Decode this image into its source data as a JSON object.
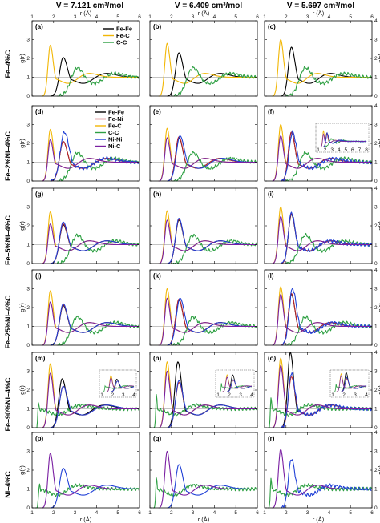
{
  "figure": {
    "top_axis_label": "r (Å)",
    "bottom_axis_label": "r (Å)",
    "y_axis_label": "g(r)",
    "x_ticks": [
      "1",
      "2",
      "3",
      "4",
      "5",
      "6"
    ],
    "y_ticks_left": [
      "0",
      "1",
      "2",
      "3"
    ],
    "y_ticks_right": [
      "0",
      "1",
      "2",
      "3",
      "4"
    ],
    "inset_x_ticks": [
      "1",
      "2",
      "3",
      "4",
      "5",
      "6",
      "7",
      "8"
    ],
    "inset_x_ticks_small": [
      "1",
      "2",
      "3",
      "4"
    ]
  },
  "columns": [
    {
      "label": "V = 7.121 cm³/mol"
    },
    {
      "label": "V = 6.409 cm³/mol"
    },
    {
      "label": "V = 5.697 cm³/mol"
    }
  ],
  "rows": [
    {
      "label": "Fe–4%C"
    },
    {
      "label": "Fe–2%Ni–4%C"
    },
    {
      "label": "Fe–5%Ni–4%C"
    },
    {
      "label": "Fe–25%Ni–4%C"
    },
    {
      "label": "Fe–90%Ni–4%C"
    },
    {
      "label": "Ni–4%C"
    }
  ],
  "panel_labels": [
    "(a)",
    "(b)",
    "(c)",
    "(d)",
    "(e)",
    "(f)",
    "(g)",
    "(h)",
    "(i)",
    "(j)",
    "(k)",
    "(l)",
    "(m)",
    "(n)",
    "(o)",
    "(p)",
    "(q)",
    "(r)"
  ],
  "legend_row1": [
    "Fe-Fe",
    "Fe-C",
    "C-C"
  ],
  "legend_row2": [
    "Fe-Fe",
    "Fe-Ni",
    "Fe-C",
    "C-C",
    "Ni-Ni",
    "Ni-C"
  ],
  "colors": {
    "Fe-Fe": "#000000",
    "Fe-Ni": "#c0262b",
    "Fe-C": "#f2b705",
    "C-C": "#2ea043",
    "Ni-Ni": "#1f3fd6",
    "Ni-C": "#7a1fa2"
  },
  "chart_data": {
    "type": "line",
    "xlabel": "r (Å)",
    "ylabel": "g(r)",
    "xlim": [
      1,
      6
    ],
    "ylim": [
      0,
      4
    ],
    "reference_line_y": 1,
    "peak_model": "each curve rises from zero at r0 to a first peak (r1, h1), dips to a minimum, and oscillates about g(r)=1 with a second maximum near r2",
    "panels": [
      {
        "id": "a",
        "series": [
          {
            "name": "Fe-Fe",
            "r0": 1.9,
            "r1": 2.45,
            "h1": 2.05,
            "r2": 4.4
          },
          {
            "name": "Fe-C",
            "r0": 1.5,
            "r1": 1.85,
            "h1": 2.7,
            "r2": 3.6
          },
          {
            "name": "C-C",
            "r0": 2.2,
            "r1": 3.1,
            "h1": 1.5,
            "r2": 4.8
          }
        ]
      },
      {
        "id": "b",
        "series": [
          {
            "name": "Fe-Fe",
            "r0": 1.85,
            "r1": 2.35,
            "h1": 2.3,
            "r2": 4.2
          },
          {
            "name": "Fe-C",
            "r0": 1.45,
            "r1": 1.8,
            "h1": 2.8,
            "r2": 3.5
          },
          {
            "name": "C-C",
            "r0": 2.1,
            "r1": 3.0,
            "h1": 1.5,
            "r2": 4.7
          }
        ]
      },
      {
        "id": "c",
        "series": [
          {
            "name": "Fe-Fe",
            "r0": 1.8,
            "r1": 2.25,
            "h1": 2.6,
            "r2": 4.0
          },
          {
            "name": "Fe-C",
            "r0": 1.4,
            "r1": 1.75,
            "h1": 3.0,
            "r2": 3.4
          },
          {
            "name": "C-C",
            "r0": 2.0,
            "r1": 2.9,
            "h1": 1.5,
            "r2": 4.6
          }
        ]
      },
      {
        "id": "d",
        "series": [
          {
            "name": "Fe-Fe",
            "r0": 1.9,
            "r1": 2.45,
            "h1": 2.1,
            "r2": 4.4
          },
          {
            "name": "Fe-Ni",
            "r0": 1.9,
            "r1": 2.45,
            "h1": 2.1,
            "r2": 4.4
          },
          {
            "name": "Fe-C",
            "r0": 1.5,
            "r1": 1.85,
            "h1": 2.75,
            "r2": 3.6
          },
          {
            "name": "C-C",
            "r0": 2.2,
            "r1": 3.1,
            "h1": 1.5,
            "r2": 4.8
          },
          {
            "name": "Ni-Ni",
            "r0": 1.9,
            "r1": 2.5,
            "h1": 2.6,
            "r2": 4.4
          },
          {
            "name": "Ni-C",
            "r0": 1.5,
            "r1": 1.85,
            "h1": 2.2,
            "r2": 3.6
          }
        ]
      },
      {
        "id": "e",
        "series": [
          {
            "name": "Fe-Fe",
            "r0": 1.85,
            "r1": 2.35,
            "h1": 2.3,
            "r2": 4.2
          },
          {
            "name": "Fe-Ni",
            "r0": 1.85,
            "r1": 2.35,
            "h1": 2.35,
            "r2": 4.2
          },
          {
            "name": "Fe-C",
            "r0": 1.45,
            "r1": 1.8,
            "h1": 2.8,
            "r2": 3.5
          },
          {
            "name": "C-C",
            "r0": 2.1,
            "r1": 3.0,
            "h1": 1.5,
            "r2": 4.7
          },
          {
            "name": "Ni-Ni",
            "r0": 1.85,
            "r1": 2.4,
            "h1": 2.4,
            "r2": 4.3
          },
          {
            "name": "Ni-C",
            "r0": 1.45,
            "r1": 1.8,
            "h1": 2.3,
            "r2": 3.5
          }
        ]
      },
      {
        "id": "f",
        "series": [
          {
            "name": "Fe-Fe",
            "r0": 1.8,
            "r1": 2.25,
            "h1": 2.6,
            "r2": 4.0
          },
          {
            "name": "Fe-Ni",
            "r0": 1.8,
            "r1": 2.25,
            "h1": 2.6,
            "r2": 4.0
          },
          {
            "name": "Fe-C",
            "r0": 1.4,
            "r1": 1.75,
            "h1": 3.0,
            "r2": 3.4
          },
          {
            "name": "C-C",
            "r0": 2.0,
            "r1": 2.9,
            "h1": 1.5,
            "r2": 4.6
          },
          {
            "name": "Ni-Ni",
            "r0": 1.8,
            "r1": 2.3,
            "h1": 2.6,
            "r2": 4.1
          },
          {
            "name": "Ni-C",
            "r0": 1.4,
            "r1": 1.75,
            "h1": 2.4,
            "r2": 3.4
          }
        ]
      },
      {
        "id": "g",
        "series": [
          {
            "name": "Fe-Fe",
            "r0": 1.9,
            "r1": 2.45,
            "h1": 2.05,
            "r2": 4.4
          },
          {
            "name": "Fe-Ni",
            "r0": 1.9,
            "r1": 2.45,
            "h1": 2.1,
            "r2": 4.4
          },
          {
            "name": "Fe-C",
            "r0": 1.5,
            "r1": 1.85,
            "h1": 2.75,
            "r2": 3.6
          },
          {
            "name": "C-C",
            "r0": 2.2,
            "r1": 3.1,
            "h1": 1.5,
            "r2": 4.8
          },
          {
            "name": "Ni-Ni",
            "r0": 1.9,
            "r1": 2.45,
            "h1": 2.2,
            "r2": 4.4
          },
          {
            "name": "Ni-C",
            "r0": 1.5,
            "r1": 1.85,
            "h1": 2.1,
            "r2": 3.6
          }
        ]
      },
      {
        "id": "h",
        "series": [
          {
            "name": "Fe-Fe",
            "r0": 1.85,
            "r1": 2.35,
            "h1": 2.3,
            "r2": 4.2
          },
          {
            "name": "Fe-Ni",
            "r0": 1.85,
            "r1": 2.35,
            "h1": 2.35,
            "r2": 4.2
          },
          {
            "name": "Fe-C",
            "r0": 1.45,
            "r1": 1.8,
            "h1": 2.8,
            "r2": 3.5
          },
          {
            "name": "C-C",
            "r0": 2.1,
            "r1": 3.0,
            "h1": 1.5,
            "r2": 4.7
          },
          {
            "name": "Ni-Ni",
            "r0": 1.85,
            "r1": 2.35,
            "h1": 2.4,
            "r2": 4.2
          },
          {
            "name": "Ni-C",
            "r0": 1.45,
            "r1": 1.8,
            "h1": 2.3,
            "r2": 3.5
          }
        ]
      },
      {
        "id": "i",
        "series": [
          {
            "name": "Fe-Fe",
            "r0": 1.8,
            "r1": 2.25,
            "h1": 2.6,
            "r2": 4.0
          },
          {
            "name": "Fe-Ni",
            "r0": 1.8,
            "r1": 2.25,
            "h1": 2.65,
            "r2": 4.0
          },
          {
            "name": "Fe-C",
            "r0": 1.4,
            "r1": 1.75,
            "h1": 3.0,
            "r2": 3.4
          },
          {
            "name": "C-C",
            "r0": 2.0,
            "r1": 2.9,
            "h1": 1.5,
            "r2": 4.6
          },
          {
            "name": "Ni-Ni",
            "r0": 1.8,
            "r1": 2.25,
            "h1": 2.7,
            "r2": 4.0
          },
          {
            "name": "Ni-C",
            "r0": 1.4,
            "r1": 1.75,
            "h1": 2.5,
            "r2": 3.4
          }
        ]
      },
      {
        "id": "j",
        "series": [
          {
            "name": "Fe-Fe",
            "r0": 1.9,
            "r1": 2.45,
            "h1": 2.1,
            "r2": 4.4
          },
          {
            "name": "Fe-Ni",
            "r0": 1.9,
            "r1": 2.45,
            "h1": 2.15,
            "r2": 4.4
          },
          {
            "name": "Fe-C",
            "r0": 1.5,
            "r1": 1.85,
            "h1": 2.9,
            "r2": 3.6
          },
          {
            "name": "C-C",
            "r0": 2.2,
            "r1": 3.1,
            "h1": 1.5,
            "r2": 4.8
          },
          {
            "name": "Ni-Ni",
            "r0": 1.9,
            "r1": 2.45,
            "h1": 2.2,
            "r2": 4.4
          },
          {
            "name": "Ni-C",
            "r0": 1.5,
            "r1": 1.85,
            "h1": 2.3,
            "r2": 3.6
          }
        ]
      },
      {
        "id": "k",
        "series": [
          {
            "name": "Fe-Fe",
            "r0": 1.85,
            "r1": 2.35,
            "h1": 2.4,
            "r2": 4.2
          },
          {
            "name": "Fe-Ni",
            "r0": 1.85,
            "r1": 2.35,
            "h1": 2.45,
            "r2": 4.2
          },
          {
            "name": "Fe-C",
            "r0": 1.45,
            "r1": 1.8,
            "h1": 3.0,
            "r2": 3.5
          },
          {
            "name": "C-C",
            "r0": 2.1,
            "r1": 3.0,
            "h1": 1.5,
            "r2": 4.7
          },
          {
            "name": "Ni-Ni",
            "r0": 1.85,
            "r1": 2.4,
            "h1": 2.5,
            "r2": 4.2
          },
          {
            "name": "Ni-C",
            "r0": 1.45,
            "r1": 1.8,
            "h1": 2.5,
            "r2": 3.5
          }
        ]
      },
      {
        "id": "l",
        "series": [
          {
            "name": "Fe-Fe",
            "r0": 1.8,
            "r1": 2.25,
            "h1": 2.7,
            "r2": 4.0
          },
          {
            "name": "Fe-Ni",
            "r0": 1.8,
            "r1": 2.25,
            "h1": 2.75,
            "r2": 4.0
          },
          {
            "name": "Fe-C",
            "r0": 1.4,
            "r1": 1.75,
            "h1": 3.1,
            "r2": 3.4
          },
          {
            "name": "C-C",
            "r0": 2.0,
            "r1": 2.9,
            "h1": 1.5,
            "r2": 4.6
          },
          {
            "name": "Ni-Ni",
            "r0": 1.8,
            "r1": 2.3,
            "h1": 3.0,
            "r2": 4.1
          },
          {
            "name": "Ni-C",
            "r0": 1.4,
            "r1": 1.75,
            "h1": 2.7,
            "r2": 3.4
          }
        ]
      },
      {
        "id": "m",
        "series": [
          {
            "name": "Fe-Fe",
            "r0": 1.9,
            "r1": 2.4,
            "h1": 2.6,
            "r2": 4.3
          },
          {
            "name": "Fe-Ni",
            "r0": 1.9,
            "r1": 2.45,
            "h1": 2.2,
            "r2": 4.4
          },
          {
            "name": "Fe-C",
            "r0": 1.5,
            "r1": 1.85,
            "h1": 3.4,
            "r2": 3.6
          },
          {
            "name": "C-C",
            "r0": 1.2,
            "r1": 1.3,
            "h1": 1.3,
            "r2": 3.2
          },
          {
            "name": "Ni-Ni",
            "r0": 1.9,
            "r1": 2.45,
            "h1": 2.2,
            "r2": 4.4
          },
          {
            "name": "Ni-C",
            "r0": 1.5,
            "r1": 1.85,
            "h1": 2.9,
            "r2": 3.6
          }
        ]
      },
      {
        "id": "n",
        "series": [
          {
            "name": "Fe-Fe",
            "r0": 1.85,
            "r1": 2.3,
            "h1": 3.5,
            "r2": 4.2
          },
          {
            "name": "Fe-Ni",
            "r0": 1.85,
            "r1": 2.35,
            "h1": 2.4,
            "r2": 4.2
          },
          {
            "name": "Fe-C",
            "r0": 1.45,
            "r1": 1.8,
            "h1": 3.5,
            "r2": 3.5
          },
          {
            "name": "C-C",
            "r0": 1.2,
            "r1": 1.3,
            "h1": 1.7,
            "r2": 3.1
          },
          {
            "name": "Ni-Ni",
            "r0": 1.85,
            "r1": 2.35,
            "h1": 2.5,
            "r2": 4.2
          },
          {
            "name": "Ni-C",
            "r0": 1.45,
            "r1": 1.8,
            "h1": 3.0,
            "r2": 3.5
          }
        ]
      },
      {
        "id": "o",
        "series": [
          {
            "name": "Fe-Fe",
            "r0": 1.8,
            "r1": 2.2,
            "h1": 4.0,
            "r2": 4.0
          },
          {
            "name": "Fe-Ni",
            "r0": 1.8,
            "r1": 2.25,
            "h1": 2.7,
            "r2": 4.0
          },
          {
            "name": "Fe-C",
            "r0": 1.4,
            "r1": 1.75,
            "h1": 3.7,
            "r2": 3.4
          },
          {
            "name": "C-C",
            "r0": 1.2,
            "r1": 1.3,
            "h1": 1.6,
            "r2": 3.0
          },
          {
            "name": "Ni-Ni",
            "r0": 1.8,
            "r1": 2.25,
            "h1": 2.9,
            "r2": 4.0
          },
          {
            "name": "Ni-C",
            "r0": 1.4,
            "r1": 1.75,
            "h1": 3.3,
            "r2": 3.4
          }
        ]
      },
      {
        "id": "p",
        "series": [
          {
            "name": "C-C",
            "r0": 1.2,
            "r1": 1.35,
            "h1": 1.2,
            "r2": 3.1
          },
          {
            "name": "Ni-Ni",
            "r0": 1.9,
            "r1": 2.45,
            "h1": 2.1,
            "r2": 4.4
          },
          {
            "name": "Ni-C",
            "r0": 1.5,
            "r1": 1.85,
            "h1": 2.9,
            "r2": 3.6
          }
        ]
      },
      {
        "id": "q",
        "series": [
          {
            "name": "C-C",
            "r0": 1.2,
            "r1": 1.3,
            "h1": 1.6,
            "r2": 3.0
          },
          {
            "name": "Ni-Ni",
            "r0": 1.85,
            "r1": 2.35,
            "h1": 2.3,
            "r2": 4.2
          },
          {
            "name": "Ni-C",
            "r0": 1.45,
            "r1": 1.8,
            "h1": 3.0,
            "r2": 3.5
          }
        ]
      },
      {
        "id": "r",
        "series": [
          {
            "name": "C-C",
            "r0": 1.2,
            "r1": 1.3,
            "h1": 1.6,
            "r2": 2.9
          },
          {
            "name": "Ni-Ni",
            "r0": 1.8,
            "r1": 2.25,
            "h1": 2.6,
            "r2": 4.0
          },
          {
            "name": "Ni-C",
            "r0": 1.4,
            "r1": 1.75,
            "h1": 3.1,
            "r2": 3.4
          }
        ]
      }
    ]
  }
}
